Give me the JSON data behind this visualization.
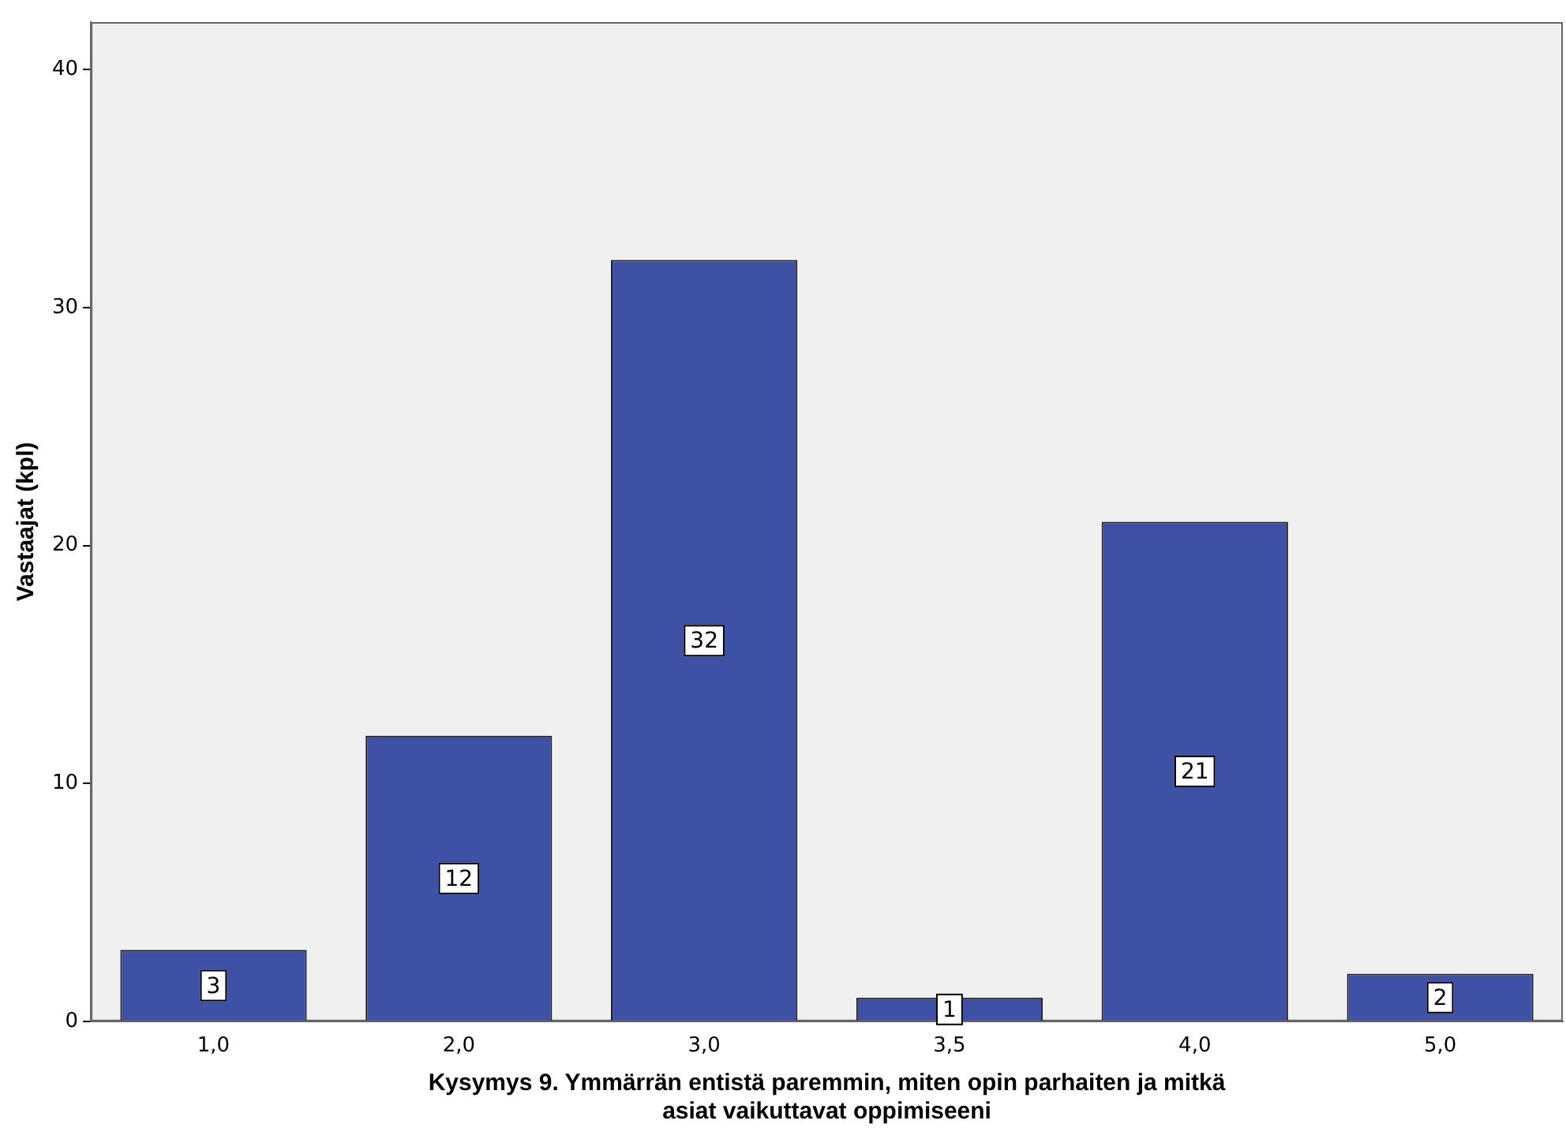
{
  "chart_data": {
    "type": "bar",
    "xlabel": "Kysymys 9. Ymmärrän entistä paremmin, miten opin parhaiten ja mitkä asiat vaikuttavat oppimiseeni",
    "ylabel": "Vastaajat (kpl)",
    "categories": [
      "1,0",
      "2,0",
      "3,0",
      "3,5",
      "4,0",
      "5,0"
    ],
    "values": [
      3,
      12,
      32,
      1,
      21,
      2
    ],
    "color": "#3f51a5",
    "ylim": [
      0,
      42
    ],
    "yticks": [
      0,
      10,
      20,
      30,
      40
    ],
    "grid": false,
    "legend": false,
    "data_labels": true
  }
}
